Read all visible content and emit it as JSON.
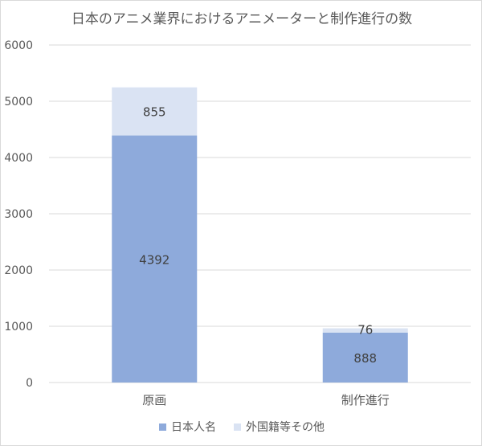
{
  "chart_data": {
    "type": "bar",
    "stacked": true,
    "title": "日本のアニメ業界におけるアニメーターと制作進行の数",
    "xlabel": "",
    "ylabel": "",
    "categories": [
      "原画",
      "制作進行"
    ],
    "series": [
      {
        "name": "日本人名",
        "values": [
          4392,
          888
        ],
        "color": "#8eaadb"
      },
      {
        "name": "外国籍等その他",
        "values": [
          855,
          76
        ],
        "color": "#dae3f3"
      }
    ],
    "ylim": [
      0,
      6000
    ],
    "yticks": [
      "0",
      "1000",
      "2000",
      "3000",
      "4000",
      "5000",
      "6000"
    ],
    "grid": true,
    "data_labels": true,
    "legend_position": "bottom"
  }
}
